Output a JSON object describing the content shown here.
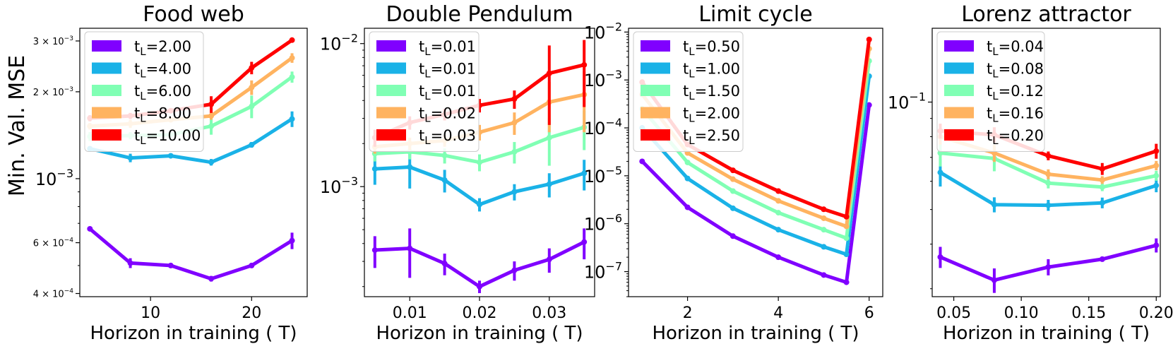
{
  "y_axis_label": "Min. Val. MSE",
  "chart_data": [
    {
      "type": "line",
      "title": "Food web",
      "xlabel": "Horizon in training ( T)",
      "ylabel": "Min. Val. MSE",
      "yscale": "log",
      "xlim": [
        3,
        25.5
      ],
      "ylim": [
        0.00039,
        0.00332
      ],
      "x_ticks": [
        10,
        20
      ],
      "y_ticks": [
        {
          "value": 0.0004,
          "mant": "4 × 10",
          "exp": "−4"
        },
        {
          "value": 0.0006,
          "mant": "6 × 10",
          "exp": "−4"
        },
        {
          "value": 0.001,
          "mant": "10",
          "exp": "−3"
        },
        {
          "value": 0.002,
          "mant": "2 × 10",
          "exp": "−3"
        },
        {
          "value": 0.003,
          "mant": "3 × 10",
          "exp": "−3"
        }
      ],
      "x": [
        4,
        8,
        12,
        16,
        20,
        24
      ],
      "series": [
        {
          "name": "t_L=2.00",
          "sub_label": "L",
          "value_label": "=2.00",
          "color": "#8000ff",
          "values": [
            0.00067,
            0.00051,
            0.0005,
            0.00045,
            0.0005,
            0.00061
          ],
          "errors": [
            1e-05,
            2e-05,
            1e-05,
            1e-05,
            1e-05,
            4e-05
          ]
        },
        {
          "name": "t_L=4.00",
          "sub_label": "L",
          "value_label": "=4.00",
          "color": "#1ab2e7",
          "values": [
            0.00127,
            0.00118,
            0.0012,
            0.00114,
            0.00131,
            0.00161
          ],
          "errors": [
            2e-05,
            4e-05,
            2e-05,
            3e-05,
            3e-05,
            0.0001
          ]
        },
        {
          "name": "t_L=6.00",
          "sub_label": "L",
          "value_label": "=6.00",
          "color": "#80ffb4",
          "values": [
            0.0014,
            0.00141,
            0.00142,
            0.00152,
            0.00178,
            0.00225
          ],
          "errors": [
            5e-05,
            4e-05,
            3e-05,
            0.0001,
            0.00016,
            0.0001
          ]
        },
        {
          "name": "t_L=8.00",
          "sub_label": "L",
          "value_label": "=8.00",
          "color": "#ffb360",
          "values": [
            0.00152,
            0.00155,
            0.0016,
            0.00165,
            0.00207,
            0.00262
          ],
          "errors": [
            4e-05,
            5e-05,
            3e-05,
            5e-05,
            0.00012,
            0.0001
          ]
        },
        {
          "name": "t_L=10.00",
          "sub_label": "L",
          "value_label": "=10.00",
          "color": "#ff0000",
          "values": [
            0.00162,
            0.00165,
            0.00172,
            0.00181,
            0.00242,
            0.00302
          ],
          "errors": [
            4e-05,
            4e-05,
            3e-05,
            0.00012,
            0.00012,
            5e-05
          ]
        }
      ]
    },
    {
      "type": "line",
      "title": "Double Pendulum",
      "xlabel": "Horizon in training ( T)",
      "yscale": "log",
      "xlim": [
        0.0035,
        0.0365
      ],
      "ylim": [
        0.00017,
        0.0128
      ],
      "x_ticks": [
        0.01,
        0.02,
        0.03
      ],
      "y_ticks": [
        {
          "value": 0.001,
          "mant": "10",
          "exp": "−3"
        },
        {
          "value": 0.01,
          "mant": "10",
          "exp": "−2"
        }
      ],
      "x": [
        0.005,
        0.01,
        0.015,
        0.02,
        0.025,
        0.03,
        0.035
      ],
      "series": [
        {
          "name": "t_L=0.01",
          "sub_label": "L",
          "value_label": "=0.01",
          "color": "#8000ff",
          "values": [
            0.00036,
            0.00037,
            0.00029,
            0.0002,
            0.00026,
            0.00031,
            0.00041
          ],
          "errors": [
            9e-05,
            0.00014,
            5e-05,
            2e-05,
            4e-05,
            6e-05,
            0.0001
          ]
        },
        {
          "name": "t_L=0.01",
          "sub_label": "L",
          "value_label": "=0.01",
          "color": "#1ab2e7",
          "values": [
            0.00133,
            0.00137,
            0.00111,
            0.00075,
            0.00092,
            0.00104,
            0.00124
          ],
          "errors": [
            0.0003,
            0.0004,
            0.0002,
            8e-05,
            0.00012,
            0.0002,
            0.0003
          ]
        },
        {
          "name": "t_L=0.01",
          "sub_label": "L",
          "value_label": "=0.01",
          "color": "#80ffb4",
          "values": [
            0.0017,
            0.00175,
            0.00165,
            0.00148,
            0.00175,
            0.0022,
            0.0026
          ],
          "errors": [
            0.0002,
            0.0002,
            0.0002,
            0.0002,
            0.0003,
            0.0008,
            0.0008
          ]
        },
        {
          "name": "t_L=0.02",
          "sub_label": "L",
          "value_label": "=0.02",
          "color": "#ffb360",
          "values": [
            0.0019,
            0.002,
            0.0021,
            0.0024,
            0.0028,
            0.0039,
            0.0044
          ],
          "errors": [
            0.0002,
            0.0002,
            0.0002,
            0.0003,
            0.0005,
            0.0015,
            0.002
          ]
        },
        {
          "name": "t_L=0.03",
          "sub_label": "L",
          "value_label": "=0.03",
          "color": "#ff0000",
          "values": [
            0.0022,
            0.0028,
            0.0032,
            0.0037,
            0.0041,
            0.0062,
            0.0071
          ],
          "errors": [
            0.0003,
            0.0003,
            0.0003,
            0.0004,
            0.0006,
            0.0035,
            0.0035
          ]
        }
      ]
    },
    {
      "type": "line",
      "title": "Limit cycle",
      "xlabel": "Horizon in training ( T)",
      "yscale": "log",
      "xlim": [
        0.7,
        6.3
      ],
      "ylim": [
        3e-08,
        0.012
      ],
      "x_ticks": [
        2,
        4,
        6
      ],
      "y_ticks": [
        {
          "value": 1e-07,
          "mant": "10",
          "exp": "−7"
        },
        {
          "value": 1e-06,
          "mant": "10",
          "exp": "−6"
        },
        {
          "value": 1e-05,
          "mant": "10",
          "exp": "−5"
        },
        {
          "value": 0.0001,
          "mant": "10",
          "exp": "−4"
        },
        {
          "value": 0.001,
          "mant": "10",
          "exp": "−3"
        },
        {
          "value": 0.01,
          "mant": "10",
          "exp": "−2"
        }
      ],
      "x": [
        1,
        2,
        3,
        4,
        5,
        5.5,
        6
      ],
      "series": [
        {
          "name": "t_L=0.50",
          "sub_label": "L",
          "value_label": "=0.50",
          "color": "#8000ff",
          "values": [
            2e-05,
            2.2e-06,
            5.5e-07,
            2e-07,
            8.5e-08,
            6e-08,
            0.0003
          ],
          "errors": [
            0,
            0,
            0,
            0,
            0,
            0,
            0
          ]
        },
        {
          "name": "t_L=1.00",
          "sub_label": "L",
          "value_label": "=1.00",
          "color": "#1ab2e7",
          "values": [
            0.0001,
            8.8e-06,
            2.1e-06,
            7.5e-07,
            3.3e-07,
            2.3e-07,
            0.0012
          ],
          "errors": [
            0,
            0,
            0,
            0,
            0,
            0,
            0
          ]
        },
        {
          "name": "t_L=1.50",
          "sub_label": "L",
          "value_label": "=1.50",
          "color": "#80ffb4",
          "values": [
            0.00025,
            1.9e-05,
            4.8e-06,
            1.7e-06,
            7.5e-07,
            5e-07,
            0.0025
          ],
          "errors": [
            0,
            0,
            0,
            0,
            0,
            0,
            0
          ]
        },
        {
          "name": "t_L=2.00",
          "sub_label": "L",
          "value_label": "=2.00",
          "color": "#ffb360",
          "values": [
            0.0005,
            3e-05,
            8.5e-06,
            3e-06,
            1.3e-06,
            8.8e-07,
            0.0045
          ],
          "errors": [
            0,
            0,
            0,
            0,
            0,
            0,
            0
          ]
        },
        {
          "name": "t_L=2.50",
          "sub_label": "L",
          "value_label": "=2.50",
          "color": "#ff0000",
          "values": [
            0.0009,
            4.5e-05,
            1.3e-05,
            4.8e-06,
            2e-06,
            1.4e-06,
            0.007
          ],
          "errors": [
            0,
            0,
            0,
            0,
            0,
            0,
            0
          ]
        }
      ]
    },
    {
      "type": "line",
      "title": "Lorenz attractor",
      "xlabel": "Horizon in training ( T)",
      "yscale": "log",
      "xlim": [
        0.034,
        0.203
      ],
      "ylim": [
        0.0285,
        0.161
      ],
      "x_ticks": [
        0.05,
        0.1,
        0.15,
        0.2
      ],
      "x_tick_labels": [
        "0.05",
        "0.10",
        "0.15",
        "0.20"
      ],
      "y_ticks": [
        {
          "value": 0.1,
          "mant": "10",
          "exp": "−1"
        }
      ],
      "x": [
        0.04,
        0.08,
        0.12,
        0.16,
        0.2
      ],
      "series": [
        {
          "name": "t_L=0.04",
          "sub_label": "L",
          "value_label": "=0.04",
          "color": "#8000ff",
          "values": [
            0.0368,
            0.0317,
            0.0345,
            0.0363,
            0.0397
          ],
          "errors": [
            0.0025,
            0.0025,
            0.0018,
            0.0006,
            0.0018
          ]
        },
        {
          "name": "t_L=0.08",
          "sub_label": "L",
          "value_label": "=0.08",
          "color": "#1ab2e7",
          "values": [
            0.0635,
            0.0516,
            0.0514,
            0.0522,
            0.0584
          ],
          "errors": [
            0.0055,
            0.0025,
            0.0018,
            0.0018,
            0.0025
          ]
        },
        {
          "name": "t_L=0.12",
          "sub_label": "L",
          "value_label": "=0.12",
          "color": "#80ffb4",
          "values": [
            0.072,
            0.0695,
            0.0593,
            0.0578,
            0.0622
          ],
          "errors": [
            0.006,
            0.0055,
            0.002,
            0.0015,
            0.002
          ]
        },
        {
          "name": "t_L=0.16",
          "sub_label": "L",
          "value_label": "=0.16",
          "color": "#ffb360",
          "values": [
            0.08,
            0.072,
            0.0628,
            0.0605,
            0.0664
          ],
          "errors": [
            0.004,
            0.004,
            0.002,
            0.0015,
            0.002
          ]
        },
        {
          "name": "t_L=0.20",
          "sub_label": "L",
          "value_label": "=0.20",
          "color": "#ff0000",
          "values": [
            0.083,
            0.081,
            0.0707,
            0.065,
            0.0729
          ],
          "errors": [
            0.004,
            0.004,
            0.002,
            0.0025,
            0.0035
          ]
        }
      ]
    }
  ]
}
